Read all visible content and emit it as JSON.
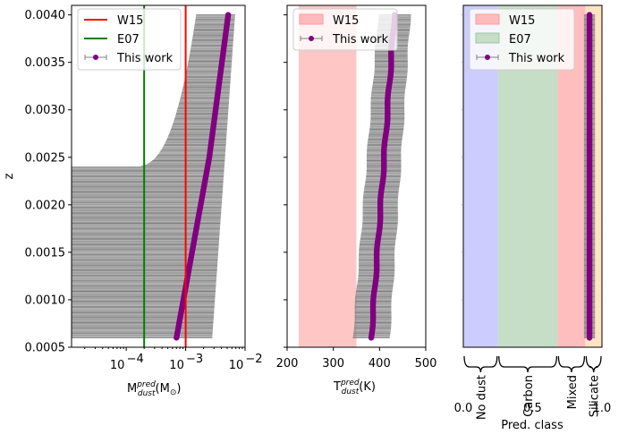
{
  "chart_data": [
    {
      "type": "scatter",
      "panel": "left",
      "xscale": "log",
      "xlim": [
        1.2e-05,
        0.01
      ],
      "ylim": [
        0.0005,
        0.0041
      ],
      "xlabel": "M_dust^pred (M_⊙)",
      "xlabel_main": "M",
      "xlabel_sup": "pred",
      "xlabel_sub": "dust",
      "xlabel_unit": "(M",
      "xlabel_unit_sub": "⊙",
      "xlabel_close": ")",
      "ylabel": "z",
      "yticks": [
        0.0005,
        0.001,
        0.0015,
        0.002,
        0.0025,
        0.003,
        0.0035,
        0.004
      ],
      "ytick_labels": [
        "0.0005",
        "0.0010",
        "0.0015",
        "0.0020",
        "0.0025",
        "0.0030",
        "0.0035",
        "0.0040"
      ],
      "xticks": [
        0.0001,
        0.001,
        0.01
      ],
      "xtick_base": "10",
      "xtick_exps": [
        "−4",
        "−3",
        "−2"
      ],
      "reference_lines": [
        {
          "name": "W15",
          "value": 0.001,
          "color": "#ff0000"
        },
        {
          "name": "E07",
          "value": 0.0002,
          "color": "#008000"
        }
      ],
      "series": [
        {
          "name": "This work",
          "color": "#800080",
          "errcolor": "#808080",
          "z_start": 0.0006,
          "z_end": 0.004,
          "value_start": 0.0007,
          "value_mid_z": 0.0025,
          "value_mid": 0.0025,
          "value_end": 0.0052,
          "lower_start": 0.00015,
          "lower_transition_z": 0.0024,
          "lower_floor": 1.2e-05,
          "lower_end": 0.0015,
          "upper_start": 0.0028,
          "upper_end": 0.0068
        }
      ],
      "legend": {
        "location": "upper-left",
        "entries": [
          "W15",
          "E07",
          "This work"
        ]
      }
    },
    {
      "type": "scatter",
      "panel": "middle",
      "xlim": [
        200,
        500
      ],
      "ylim": [
        0.0005,
        0.0041
      ],
      "xlabel": "T_dust^pred (K)",
      "xlabel_main": "T",
      "xlabel_sup": "pred",
      "xlabel_sub": "dust",
      "xlabel_unit": "(K)",
      "xticks": [
        200,
        300,
        400,
        500
      ],
      "xtick_labels": [
        "200",
        "300",
        "400",
        "500"
      ],
      "bands": [
        {
          "name": "W15",
          "range": [
            225,
            350
          ],
          "color": "#ff9999"
        }
      ],
      "series": [
        {
          "name": "This work",
          "color": "#800080",
          "errcolor": "#808080",
          "z_start": 0.0006,
          "z_end": 0.004,
          "value_start": 382,
          "value_end": 432,
          "halfwidth_start": 40,
          "halfwidth_end": 35
        }
      ],
      "legend": {
        "location": "upper-left",
        "entries": [
          "W15",
          "This work"
        ]
      }
    },
    {
      "type": "scatter",
      "panel": "right",
      "xlim": [
        0.0,
        1.0
      ],
      "ylim": [
        0.0005,
        0.0041
      ],
      "xlabel": "Pred. class",
      "xticks": [
        0.0,
        0.5,
        1.0
      ],
      "xtick_labels": [
        "0.0",
        "0.5",
        "1.0"
      ],
      "bands": [
        {
          "name": "No dust",
          "range": [
            0.0,
            0.25
          ],
          "color": "#ccccff"
        },
        {
          "name": "Carbon",
          "range": [
            0.25,
            0.68
          ],
          "color": "#c6ddc6"
        },
        {
          "name": "Mixed",
          "range": [
            0.68,
            0.88
          ],
          "color": "#ffbebe"
        },
        {
          "name": "Silicate",
          "range": [
            0.88,
            1.0
          ],
          "color": "#ffe4c4"
        }
      ],
      "class_labels": [
        "No dust",
        "Carbon",
        "Mixed",
        "Silicate"
      ],
      "series": [
        {
          "name": "This work",
          "color": "#800080",
          "errcolor": "#808080",
          "z_start": 0.0006,
          "z_end": 0.004,
          "value": 0.91,
          "halfwidth": 0.04
        }
      ],
      "legend": {
        "location": "upper-left",
        "entries": [
          "W15",
          "E07",
          "This work"
        ]
      }
    }
  ]
}
